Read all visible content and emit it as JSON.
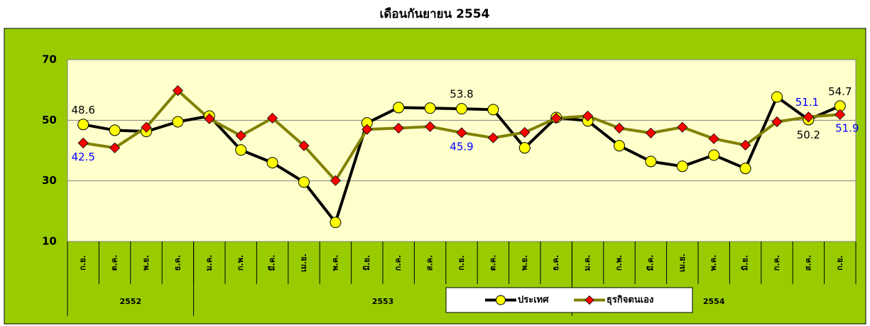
{
  "chart_data": {
    "type": "line",
    "title": "เดือนกันยายน 2554",
    "categories": [
      "ก.ย.",
      "ต.ค.",
      "พ.ย.",
      "ธ.ค.",
      "ม.ค.",
      "ก.พ.",
      "มี.ค.",
      "เม.ย.",
      "พ.ค.",
      "มิ.ย.",
      "ก.ค.",
      "ส.ค.",
      "ก.ย.",
      "ต.ค.",
      "พ.ย.",
      "ธ.ค.",
      "ม.ค.",
      "ก.พ.",
      "มี.ค.",
      "เม.ย.",
      "พ.ค.",
      "มิ.ย.",
      "ก.ค.",
      "ส.ค.",
      "ก.ย."
    ],
    "groups": [
      {
        "label": "2552",
        "span": 4
      },
      {
        "label": "2553",
        "span": 12
      },
      {
        "label": "2554",
        "span": 9
      }
    ],
    "series": [
      {
        "name": "ประเทศ",
        "color": "#000000",
        "marker_color": "#ffff00",
        "values": [
          48.6,
          46.7,
          46.3,
          49.5,
          51.4,
          40.2,
          36.0,
          29.6,
          16.3,
          49.1,
          54.2,
          54.0,
          53.8,
          53.5,
          40.9,
          50.9,
          49.8,
          41.6,
          36.4,
          34.8,
          38.5,
          34.1,
          57.7,
          50.2,
          54.7
        ],
        "labeled_points": [
          0,
          12,
          23,
          24
        ],
        "label_color": "#000000"
      },
      {
        "name": "ธุรกิจตนเอง",
        "color": "#808000",
        "marker_color": "#ff0000",
        "values": [
          42.5,
          40.9,
          47.7,
          59.8,
          50.5,
          44.9,
          50.7,
          41.6,
          30.1,
          47.0,
          47.4,
          47.9,
          45.9,
          44.2,
          46.0,
          50.7,
          51.4,
          47.4,
          45.8,
          47.7,
          43.9,
          41.8,
          49.5,
          51.1,
          51.9
        ],
        "labeled_points": [
          0,
          12,
          23,
          24
        ],
        "label_color": "#0000ff"
      }
    ],
    "ylim": [
      10,
      70
    ],
    "yticks": [
      10,
      30,
      50,
      70
    ],
    "grid": true,
    "legend": "bottom"
  }
}
